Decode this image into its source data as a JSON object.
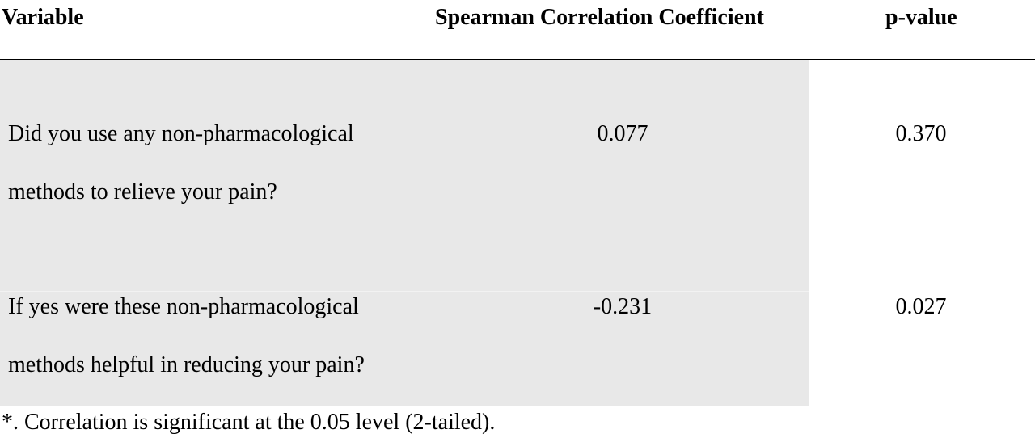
{
  "table": {
    "headers": {
      "variable": "Variable",
      "spearman": "Spearman Correlation Coefficient",
      "p_value": "p-value"
    },
    "rows": [
      {
        "variable_lines": [
          "Did you use any non-pharmacological",
          "methods to relieve your pain?"
        ],
        "spearman": "0.077",
        "p_value": "0.370"
      },
      {
        "variable_lines": [
          "If yes were these non-pharmacological",
          "methods helpful in reducing your pain?"
        ],
        "spearman": "-0.231",
        "p_value": "0.027"
      }
    ],
    "footnote": "*. Correlation is significant at the 0.05 level (2-tailed)."
  },
  "colors": {
    "shaded_background": "#e8e8e8",
    "rule": "#000000"
  }
}
